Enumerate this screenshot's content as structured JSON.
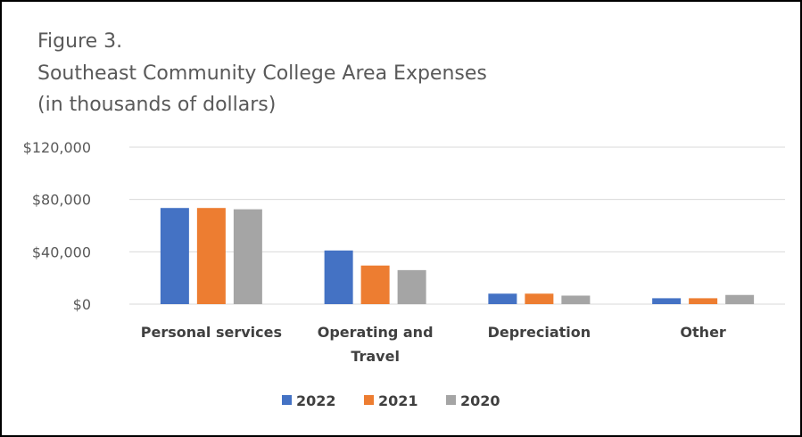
{
  "chart_data": {
    "type": "bar",
    "title_lines": [
      "Figure 3.",
      "Southeast Community College Area Expenses",
      "(in thousands of dollars)"
    ],
    "categories": [
      [
        "Personal services"
      ],
      [
        "Operating and",
        "Travel"
      ],
      [
        "Depreciation"
      ],
      [
        "Other"
      ]
    ],
    "series": [
      {
        "name": "2022",
        "color": "#4472C4",
        "values": [
          73500,
          41000,
          8000,
          4500
        ]
      },
      {
        "name": "2021",
        "color": "#ED7D31",
        "values": [
          73500,
          29500,
          8000,
          4500
        ]
      },
      {
        "name": "2020",
        "color": "#A5A5A5",
        "values": [
          72500,
          26000,
          6500,
          7000
        ]
      }
    ],
    "y_ticks": [
      "$0",
      "$40,000",
      "$80,000",
      "$120,000"
    ],
    "y_tick_values": [
      0,
      40000,
      80000,
      120000
    ],
    "ylim": [
      0,
      120000
    ],
    "grid": true,
    "gridline_color": "#D9D9D9",
    "legend_position": "bottom"
  }
}
